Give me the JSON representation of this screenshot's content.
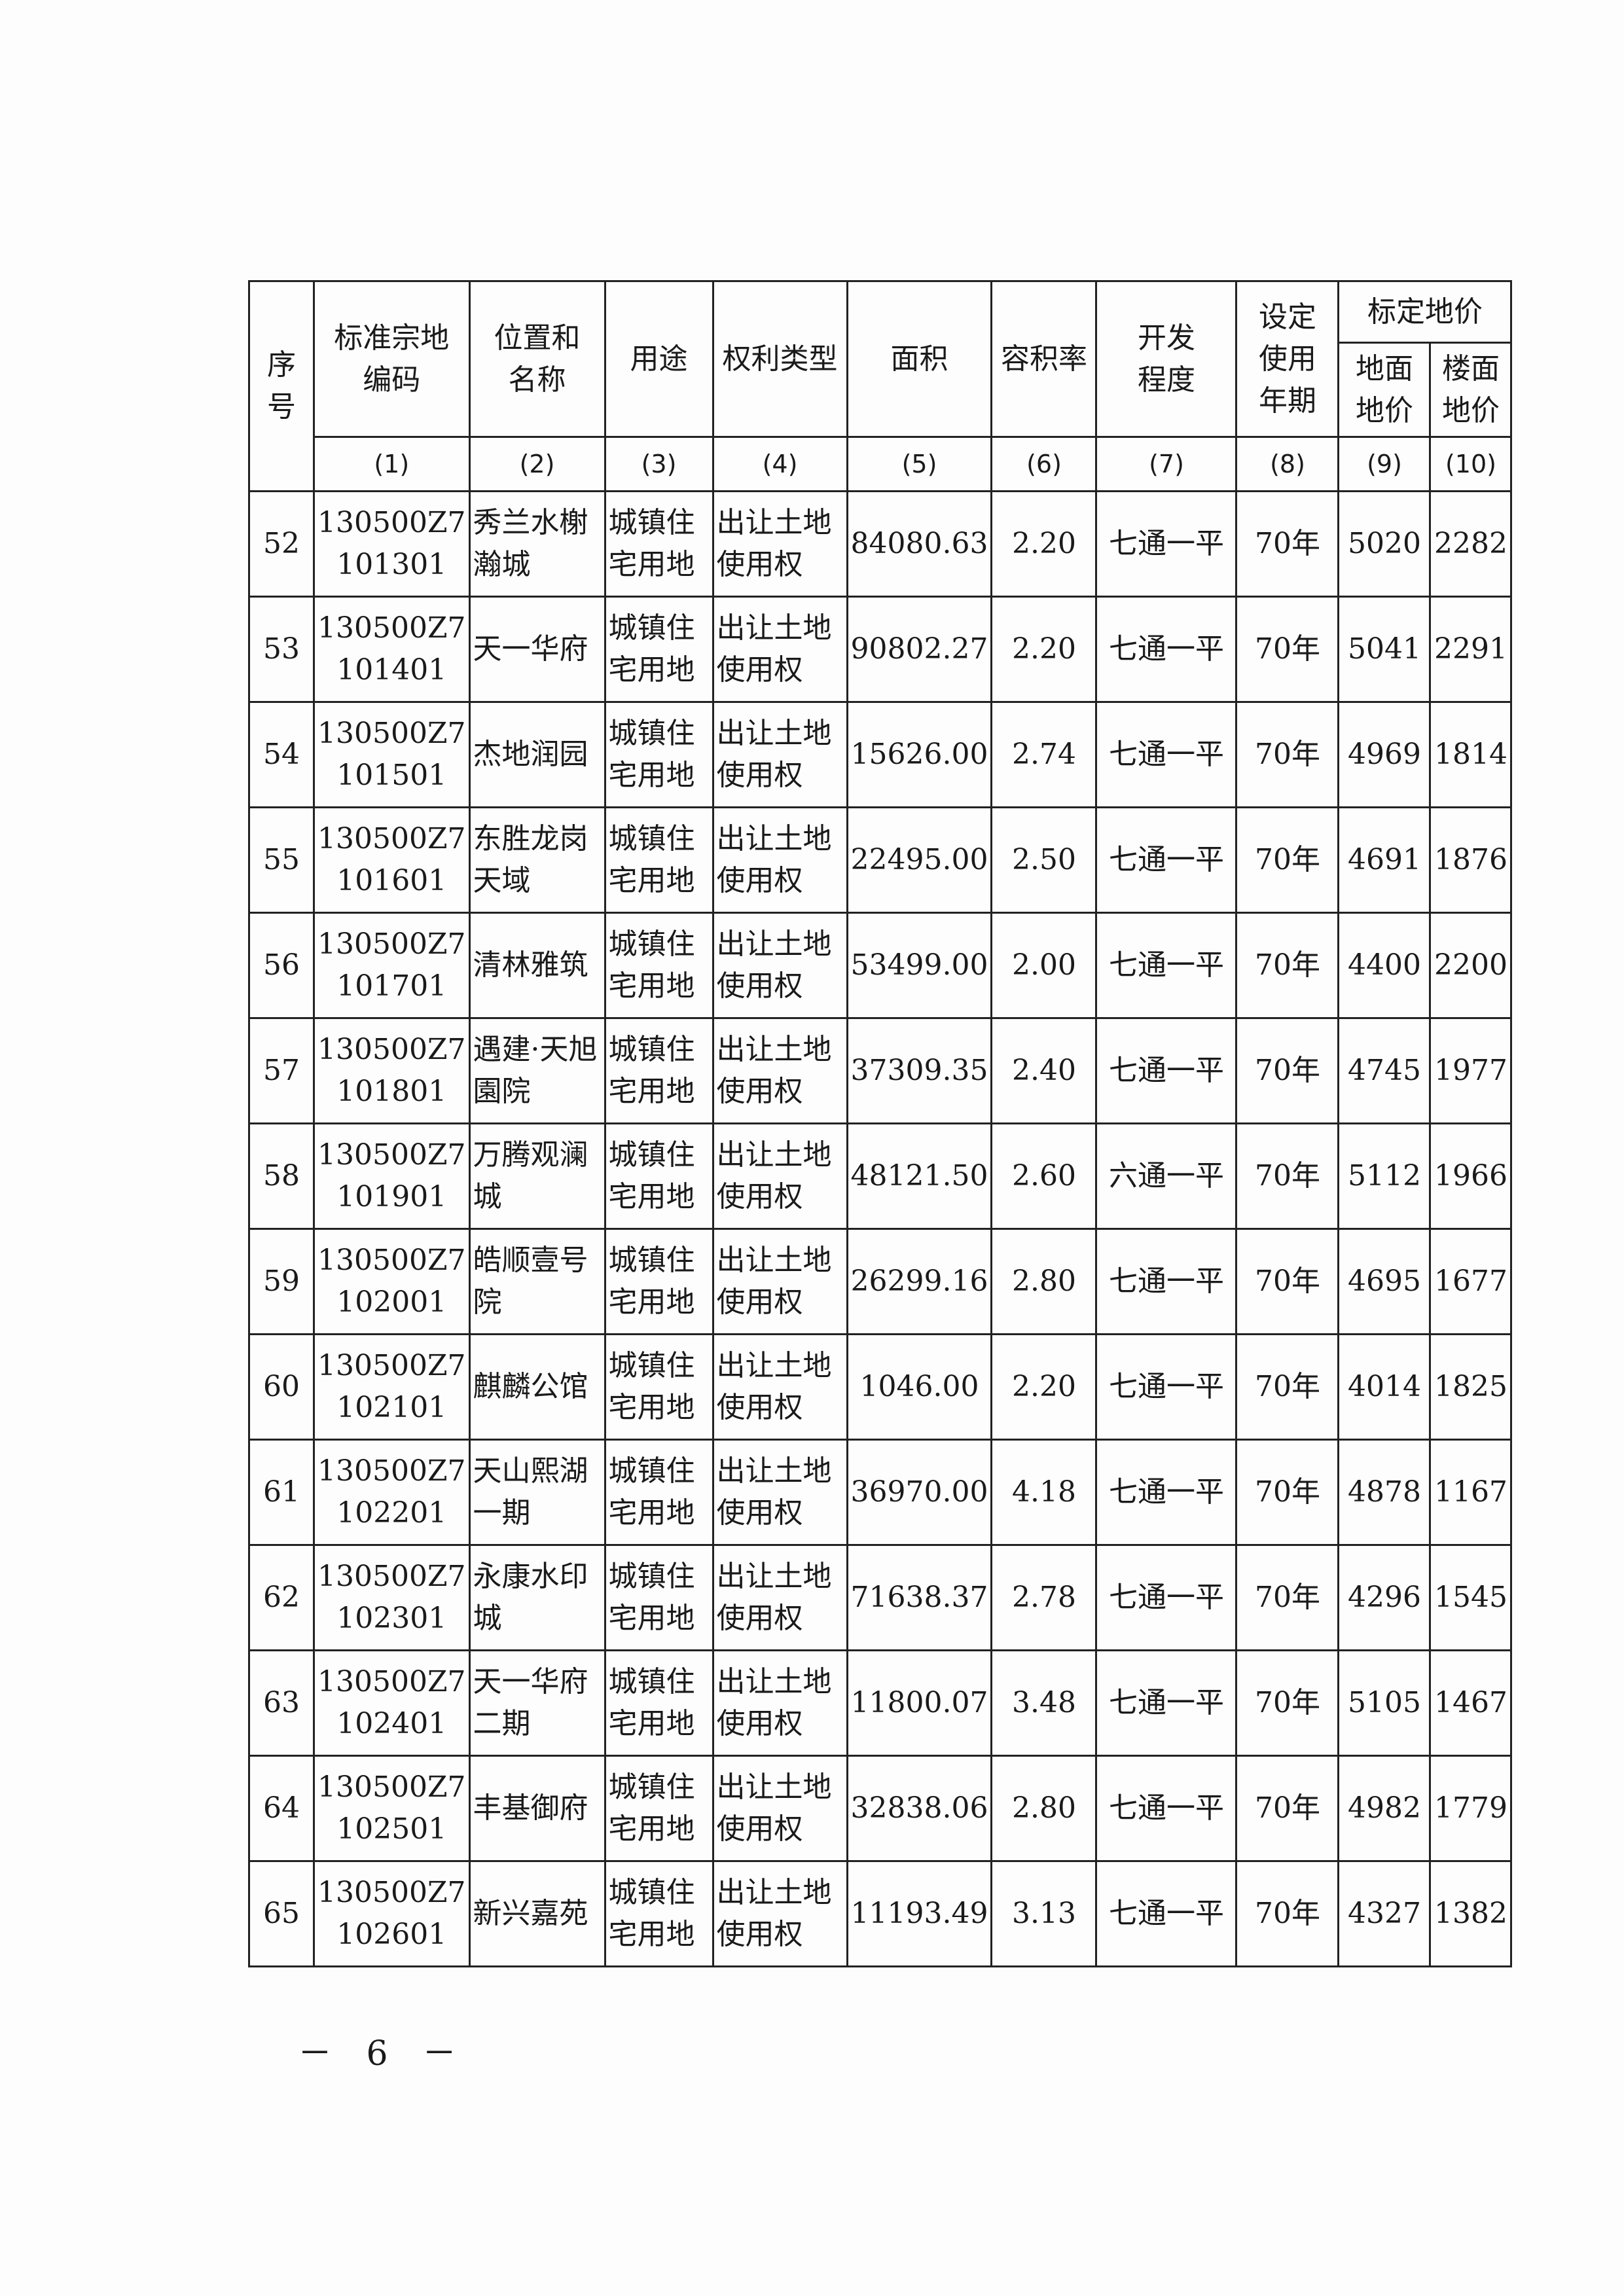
{
  "table": {
    "headers": {
      "seq": "序号",
      "code": "标准宗地编码",
      "location": "位置和名称",
      "use": "用途",
      "right_type": "权利类型",
      "area": "面积",
      "far": "容积率",
      "dev": "开发程度",
      "term": "设定使用年期",
      "price_group": "标定地价",
      "ground_price": "地面地价",
      "floor_price": "楼面地价"
    },
    "col_numbers": [
      "(1)",
      "(2)",
      "(3)",
      "(4)",
      "(5)",
      "(6)",
      "(7)",
      "(8)",
      "(9)",
      "(10)"
    ],
    "rows": [
      {
        "seq": "52",
        "code": "130500Z7 101301",
        "name": "秀兰水榭瀚城",
        "use": "城镇住宅用地",
        "right": "出让土地使用权",
        "area": "84080.63",
        "far": "2.20",
        "dev": "七通一平",
        "term": "70年",
        "ground": "5020",
        "floor": "2282"
      },
      {
        "seq": "53",
        "code": "130500Z7 101401",
        "name": "天一华府",
        "use": "城镇住宅用地",
        "right": "出让土地使用权",
        "area": "90802.27",
        "far": "2.20",
        "dev": "七通一平",
        "term": "70年",
        "ground": "5041",
        "floor": "2291"
      },
      {
        "seq": "54",
        "code": "130500Z7 101501",
        "name": "杰地润园",
        "use": "城镇住宅用地",
        "right": "出让土地使用权",
        "area": "15626.00",
        "far": "2.74",
        "dev": "七通一平",
        "term": "70年",
        "ground": "4969",
        "floor": "1814"
      },
      {
        "seq": "55",
        "code": "130500Z7 101601",
        "name": "东胜龙岗天域",
        "use": "城镇住宅用地",
        "right": "出让土地使用权",
        "area": "22495.00",
        "far": "2.50",
        "dev": "七通一平",
        "term": "70年",
        "ground": "4691",
        "floor": "1876"
      },
      {
        "seq": "56",
        "code": "130500Z7 101701",
        "name": "清林雅筑",
        "use": "城镇住宅用地",
        "right": "出让土地使用权",
        "area": "53499.00",
        "far": "2.00",
        "dev": "七通一平",
        "term": "70年",
        "ground": "4400",
        "floor": "2200"
      },
      {
        "seq": "57",
        "code": "130500Z7 101801",
        "name": "遇建·天旭園院",
        "use": "城镇住宅用地",
        "right": "出让土地使用权",
        "area": "37309.35",
        "far": "2.40",
        "dev": "七通一平",
        "term": "70年",
        "ground": "4745",
        "floor": "1977"
      },
      {
        "seq": "58",
        "code": "130500Z7 101901",
        "name": "万腾观澜城",
        "use": "城镇住宅用地",
        "right": "出让土地使用权",
        "area": "48121.50",
        "far": "2.60",
        "dev": "六通一平",
        "term": "70年",
        "ground": "5112",
        "floor": "1966"
      },
      {
        "seq": "59",
        "code": "130500Z7 102001",
        "name": "皓顺壹号院",
        "use": "城镇住宅用地",
        "right": "出让土地使用权",
        "area": "26299.16",
        "far": "2.80",
        "dev": "七通一平",
        "term": "70年",
        "ground": "4695",
        "floor": "1677"
      },
      {
        "seq": "60",
        "code": "130500Z7 102101",
        "name": "麒麟公馆",
        "use": "城镇住宅用地",
        "right": "出让土地使用权",
        "area": "1046.00",
        "far": "2.20",
        "dev": "七通一平",
        "term": "70年",
        "ground": "4014",
        "floor": "1825"
      },
      {
        "seq": "61",
        "code": "130500Z7 102201",
        "name": "天山熙湖一期",
        "use": "城镇住宅用地",
        "right": "出让土地使用权",
        "area": "36970.00",
        "far": "4.18",
        "dev": "七通一平",
        "term": "70年",
        "ground": "4878",
        "floor": "1167"
      },
      {
        "seq": "62",
        "code": "130500Z7 102301",
        "name": "永康水印城",
        "use": "城镇住宅用地",
        "right": "出让土地使用权",
        "area": "71638.37",
        "far": "2.78",
        "dev": "七通一平",
        "term": "70年",
        "ground": "4296",
        "floor": "1545"
      },
      {
        "seq": "63",
        "code": "130500Z7 102401",
        "name": "天一华府二期",
        "use": "城镇住宅用地",
        "right": "出让土地使用权",
        "area": "11800.07",
        "far": "3.48",
        "dev": "七通一平",
        "term": "70年",
        "ground": "5105",
        "floor": "1467"
      },
      {
        "seq": "64",
        "code": "130500Z7 102501",
        "name": "丰基御府",
        "use": "城镇住宅用地",
        "right": "出让土地使用权",
        "area": "32838.06",
        "far": "2.80",
        "dev": "七通一平",
        "term": "70年",
        "ground": "4982",
        "floor": "1779"
      },
      {
        "seq": "65",
        "code": "130500Z7 102601",
        "name": "新兴嘉苑",
        "use": "城镇住宅用地",
        "right": "出让土地使用权",
        "area": "11193.49",
        "far": "3.13",
        "dev": "七通一平",
        "term": "70年",
        "ground": "4327",
        "floor": "1382"
      }
    ]
  },
  "page_number": "－ 6 －"
}
